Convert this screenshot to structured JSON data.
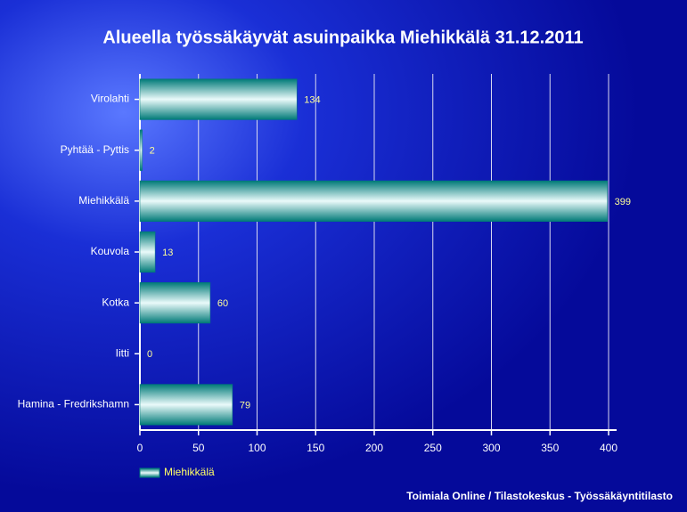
{
  "chart_data": {
    "type": "hbar",
    "title": "Alueella työssäkäyvät asuinpaikka Miehikkälä 31.12.2011",
    "categories": [
      "Virolahti",
      "Pyhtää - Pyttis",
      "Miehikkälä",
      "Kouvola",
      "Kotka",
      "Iitti",
      "Hamina - Fredrikshamn"
    ],
    "series": [
      {
        "name": "Miehikkälä",
        "color": "#007a78",
        "values": [
          134,
          2,
          399,
          13,
          60,
          0,
          79
        ]
      }
    ],
    "xlim": [
      0,
      400
    ],
    "xticks": [
      0,
      50,
      100,
      150,
      200,
      250,
      300,
      350,
      400
    ],
    "grid": true,
    "legend": "bottom-left",
    "source": "Toimiala Online / Tilastokeskus - Työssäkäyntitilasto"
  }
}
